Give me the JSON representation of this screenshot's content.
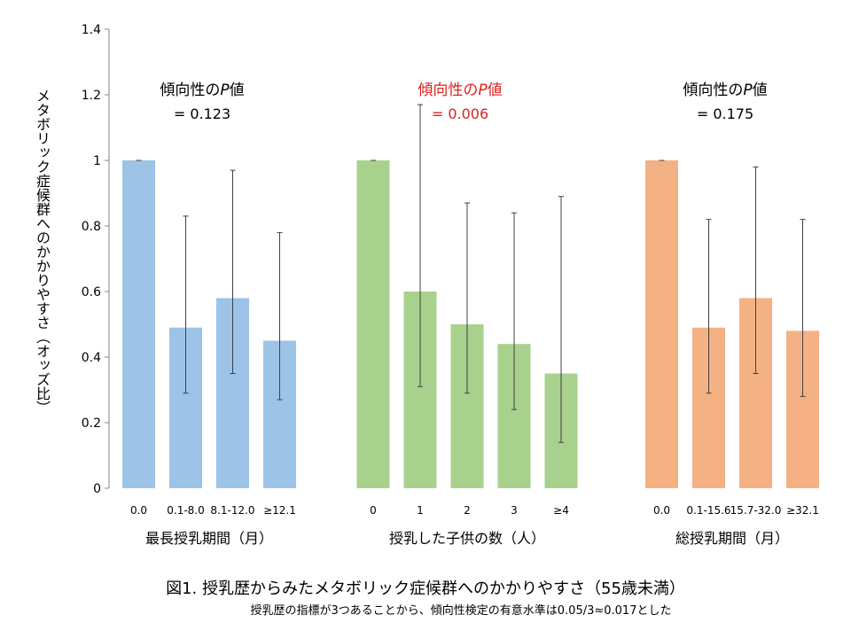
{
  "chart_data": {
    "type": "bar",
    "title": "図1. 授乳歴からみたメタボリック症候群へのかかりやすさ（55歳未満）",
    "subtitle": "授乳歴の指標が3つあることから、傾向性検定の有意水準は0.05/3≈0.017とした",
    "ylabel": "メタボリック症候群へのかかりやすさ（オッズ比）",
    "ylim": [
      0,
      1.4
    ],
    "yticks": [
      "0",
      "0.2",
      "0.4",
      "0.6",
      "0.8",
      "1",
      "1.2",
      "1.4"
    ],
    "grid": false,
    "groups": [
      {
        "xlabel": "最長授乳期間（月）",
        "color": "#9dc3e6",
        "categories": [
          "0.0",
          "0.1-8.0",
          "8.1-12.0",
          "≥12.1"
        ],
        "values": [
          1.0,
          0.49,
          0.58,
          0.45
        ],
        "ci_low": [
          1.0,
          0.29,
          0.35,
          0.27
        ],
        "ci_high": [
          1.0,
          0.83,
          0.97,
          0.78
        ],
        "annotation_line1": "傾向性の",
        "annotation_p": "P",
        "annotation_line1_suffix": "値",
        "annotation_line2": "= 0.123",
        "annotation_color": "#000000"
      },
      {
        "xlabel": "授乳した子供の数（人）",
        "color": "#a9d18e",
        "categories": [
          "0",
          "1",
          "2",
          "3",
          "≥4"
        ],
        "values": [
          1.0,
          0.6,
          0.5,
          0.44,
          0.35
        ],
        "ci_low": [
          1.0,
          0.31,
          0.29,
          0.24,
          0.14
        ],
        "ci_high": [
          1.0,
          1.17,
          0.87,
          0.84,
          0.89
        ],
        "annotation_line1": "傾向性の",
        "annotation_p": "P",
        "annotation_line1_suffix": "値",
        "annotation_line2": "= 0.006",
        "annotation_color": "#e02020"
      },
      {
        "xlabel": "総授乳期間（月）",
        "color": "#f4b183",
        "categories": [
          "0.0",
          "0.1-15.6",
          "15.7-32.0",
          "≥32.1"
        ],
        "values": [
          1.0,
          0.49,
          0.58,
          0.48
        ],
        "ci_low": [
          1.0,
          0.29,
          0.35,
          0.28
        ],
        "ci_high": [
          1.0,
          0.82,
          0.98,
          0.82
        ],
        "annotation_line1": "傾向性の",
        "annotation_p": "P",
        "annotation_line1_suffix": "値",
        "annotation_line2": "= 0.175",
        "annotation_color": "#000000"
      }
    ]
  }
}
